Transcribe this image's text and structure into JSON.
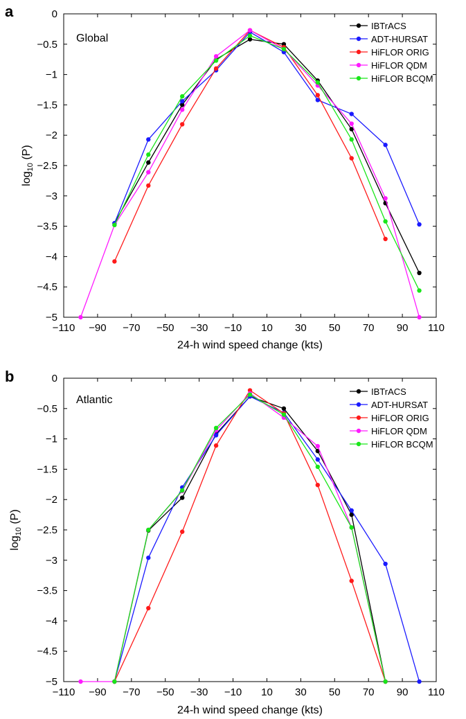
{
  "figure": {
    "panel_a_letter": "a",
    "panel_b_letter": "b"
  },
  "chart_data": [
    {
      "type": "line",
      "panel": "a",
      "region_label": "Global",
      "xlabel": "24-h wind speed change (kts)",
      "ylabel_main": "log",
      "ylabel_sub": "10",
      "ylabel_tail": " (P)",
      "xlim": [
        -110,
        110
      ],
      "ylim": [
        -5,
        0
      ],
      "xticks": [
        -110,
        -90,
        -70,
        -50,
        -30,
        -10,
        10,
        30,
        50,
        70,
        90,
        110
      ],
      "xtick_labels": [
        "−110",
        "−90",
        "−70",
        "−50",
        "−30",
        "−10",
        "10",
        "30",
        "50",
        "70",
        "90",
        "110"
      ],
      "yticks": [
        0,
        -0.5,
        -1,
        -1.5,
        -2,
        -2.5,
        -3,
        -3.5,
        -4,
        -4.5,
        -5
      ],
      "ytick_labels": [
        "0",
        "−0.5",
        "−1",
        "−1.5",
        "−2",
        "−2.5",
        "−3",
        "−3.5",
        "−4",
        "−4.5",
        "−5"
      ],
      "grid": false,
      "legend_position": "top-right",
      "series": [
        {
          "name": "IBTrACS",
          "color": "#000000",
          "points": [
            [
              -80,
              -3.45
            ],
            [
              -60,
              -2.45
            ],
            [
              -40,
              -1.5
            ],
            [
              -20,
              -0.75
            ],
            [
              0,
              -0.42
            ],
            [
              20,
              -0.5
            ],
            [
              40,
              -1.1
            ],
            [
              60,
              -1.9
            ],
            [
              80,
              -3.12
            ],
            [
              100,
              -4.27
            ]
          ]
        },
        {
          "name": "ADT-HURSAT",
          "color": "#1a1aff",
          "points": [
            [
              -80,
              -3.45
            ],
            [
              -60,
              -2.07
            ],
            [
              -40,
              -1.44
            ],
            [
              -20,
              -0.93
            ],
            [
              0,
              -0.3
            ],
            [
              20,
              -0.63
            ],
            [
              40,
              -1.42
            ],
            [
              60,
              -1.65
            ],
            [
              80,
              -2.16
            ],
            [
              100,
              -3.47
            ]
          ]
        },
        {
          "name": "HiFLOR ORIG",
          "color": "#ff1a1a",
          "points": [
            [
              -80,
              -4.08
            ],
            [
              -60,
              -2.83
            ],
            [
              -40,
              -1.82
            ],
            [
              -20,
              -0.9
            ],
            [
              0,
              -0.27
            ],
            [
              20,
              -0.55
            ],
            [
              40,
              -1.34
            ],
            [
              60,
              -2.38
            ],
            [
              80,
              -3.71
            ]
          ]
        },
        {
          "name": "HiFLOR QDM",
          "color": "#ff1aff",
          "points": [
            [
              -100,
              -5.0
            ],
            [
              -80,
              -3.48
            ],
            [
              -60,
              -2.61
            ],
            [
              -40,
              -1.58
            ],
            [
              -20,
              -0.7
            ],
            [
              0,
              -0.27
            ],
            [
              20,
              -0.58
            ],
            [
              40,
              -1.18
            ],
            [
              60,
              -1.81
            ],
            [
              80,
              -3.04
            ],
            [
              100,
              -5.0
            ]
          ]
        },
        {
          "name": "HiFLOR BCQM",
          "color": "#19e619",
          "points": [
            [
              -80,
              -3.48
            ],
            [
              -60,
              -2.32
            ],
            [
              -40,
              -1.36
            ],
            [
              -20,
              -0.77
            ],
            [
              0,
              -0.36
            ],
            [
              20,
              -0.58
            ],
            [
              40,
              -1.13
            ],
            [
              60,
              -2.07
            ],
            [
              80,
              -3.42
            ],
            [
              100,
              -4.56
            ]
          ]
        }
      ]
    },
    {
      "type": "line",
      "panel": "b",
      "region_label": "Atlantic",
      "xlabel": "24-h wind speed change (kts)",
      "ylabel_main": "log",
      "ylabel_sub": "10",
      "ylabel_tail": " (P)",
      "xlim": [
        -110,
        110
      ],
      "ylim": [
        -5,
        0
      ],
      "xticks": [
        -110,
        -90,
        -70,
        -50,
        -30,
        -10,
        10,
        30,
        50,
        70,
        90,
        110
      ],
      "xtick_labels": [
        "−110",
        "−90",
        "−70",
        "−50",
        "−30",
        "−10",
        "10",
        "30",
        "50",
        "70",
        "90",
        "110"
      ],
      "yticks": [
        0,
        -0.5,
        -1,
        -1.5,
        -2,
        -2.5,
        -3,
        -3.5,
        -4,
        -4.5,
        -5
      ],
      "ytick_labels": [
        "0",
        "−0.5",
        "−1",
        "−1.5",
        "−2",
        "−2.5",
        "−3",
        "−3.5",
        "−4",
        "−4.5",
        "−5"
      ],
      "grid": false,
      "legend_position": "top-right",
      "series": [
        {
          "name": "IBTrACS",
          "color": "#000000",
          "points": [
            [
              -80,
              -5.0
            ],
            [
              -60,
              -2.51
            ],
            [
              -40,
              -1.97
            ],
            [
              -20,
              -0.92
            ],
            [
              0,
              -0.3
            ],
            [
              20,
              -0.5
            ],
            [
              40,
              -1.2
            ],
            [
              60,
              -2.25
            ],
            [
              80,
              -5.0
            ]
          ]
        },
        {
          "name": "ADT-HURSAT",
          "color": "#1a1aff",
          "points": [
            [
              -80,
              -5.0
            ],
            [
              -60,
              -2.96
            ],
            [
              -40,
              -1.8
            ],
            [
              -20,
              -0.94
            ],
            [
              0,
              -0.3
            ],
            [
              20,
              -0.57
            ],
            [
              40,
              -1.34
            ],
            [
              60,
              -2.18
            ],
            [
              80,
              -3.06
            ],
            [
              100,
              -5.0
            ]
          ]
        },
        {
          "name": "HiFLOR ORIG",
          "color": "#ff1a1a",
          "points": [
            [
              -80,
              -5.0
            ],
            [
              -60,
              -3.79
            ],
            [
              -40,
              -2.53
            ],
            [
              -20,
              -1.11
            ],
            [
              0,
              -0.2
            ],
            [
              20,
              -0.58
            ],
            [
              40,
              -1.76
            ],
            [
              60,
              -3.34
            ],
            [
              80,
              -5.0
            ]
          ]
        },
        {
          "name": "HiFLOR QDM",
          "color": "#ff1aff",
          "points": [
            [
              -100,
              -5.0
            ],
            [
              -80,
              -5.0
            ],
            [
              -60,
              -2.5
            ],
            [
              -40,
              -1.86
            ],
            [
              -20,
              -0.86
            ],
            [
              0,
              -0.25
            ],
            [
              20,
              -0.65
            ],
            [
              40,
              -1.12
            ],
            [
              60,
              -2.46
            ],
            [
              80,
              -5.0
            ]
          ]
        },
        {
          "name": "HiFLOR BCQM",
          "color": "#19e619",
          "points": [
            [
              -80,
              -5.0
            ],
            [
              -60,
              -2.5
            ],
            [
              -40,
              -1.85
            ],
            [
              -20,
              -0.82
            ],
            [
              0,
              -0.27
            ],
            [
              20,
              -0.6
            ],
            [
              40,
              -1.46
            ],
            [
              60,
              -2.46
            ],
            [
              80,
              -5.0
            ]
          ]
        }
      ]
    }
  ]
}
